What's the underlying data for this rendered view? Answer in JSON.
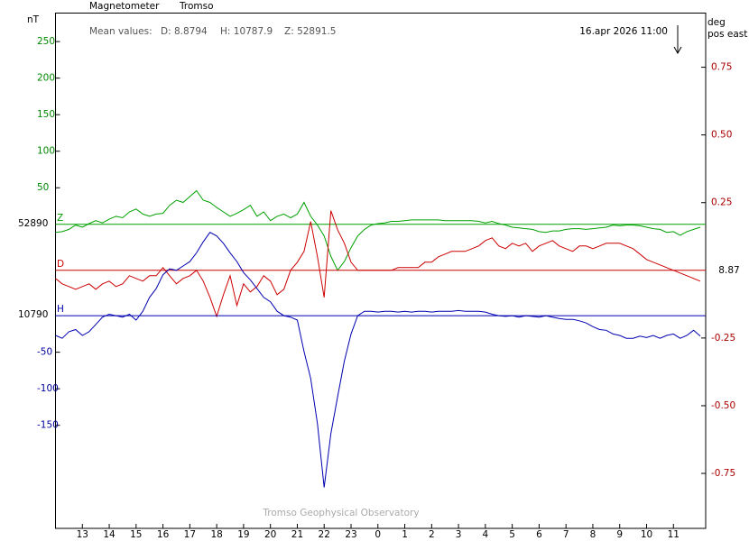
{
  "chart_data": {
    "type": "line",
    "title": "Magnetometer",
    "station": "Tromso",
    "mean_values": {
      "label": "Mean values:",
      "items": [
        "D: 8.8794",
        "H: 10787.9",
        "Z: 52891.5"
      ]
    },
    "timestamp": "16.apr 2026 11:00",
    "y_label": "nT",
    "y2_label": [
      "deg",
      "pos east"
    ],
    "footer": "Tromso Geophysical Observatory",
    "xlim": [
      12,
      36.2
    ],
    "xticks": [
      13,
      14,
      15,
      16,
      17,
      18,
      19,
      20,
      21,
      22,
      23,
      {
        "value": 24,
        "label": "0"
      },
      {
        "value": 25,
        "label": "1"
      },
      {
        "value": 26,
        "label": "2"
      },
      {
        "value": 27,
        "label": "3"
      },
      {
        "value": 28,
        "label": "4"
      },
      {
        "value": 29,
        "label": "5"
      },
      {
        "value": 30,
        "label": "6"
      },
      {
        "value": 31,
        "label": "7"
      },
      {
        "value": 32,
        "label": "8"
      },
      {
        "value": 33,
        "label": "9"
      },
      {
        "value": 34,
        "label": "10"
      },
      {
        "value": 35,
        "label": "11"
      }
    ],
    "x": [
      12,
      12.25,
      12.5,
      12.75,
      13,
      13.25,
      13.5,
      13.75,
      14,
      14.25,
      14.5,
      14.75,
      15,
      15.25,
      15.5,
      15.75,
      16,
      16.25,
      16.5,
      16.75,
      17,
      17.25,
      17.5,
      17.75,
      18,
      18.25,
      18.5,
      18.75,
      19,
      19.25,
      19.5,
      19.75,
      20,
      20.25,
      20.5,
      20.75,
      21,
      21.25,
      21.5,
      21.75,
      22,
      22.25,
      22.5,
      22.75,
      23,
      23.25,
      23.5,
      23.75,
      24,
      24.25,
      24.5,
      24.75,
      25,
      25.25,
      25.5,
      25.75,
      26,
      26.25,
      26.5,
      26.75,
      27,
      27.25,
      27.5,
      27.75,
      28,
      28.25,
      28.5,
      28.75,
      29,
      29.25,
      29.5,
      29.75,
      30,
      30.25,
      30.5,
      30.75,
      31,
      31.25,
      31.5,
      31.75,
      32,
      32.25,
      32.5,
      32.75,
      33,
      33.25,
      33.5,
      33.75,
      34,
      34.25,
      34.5,
      34.75,
      35,
      35.25,
      35.5,
      35.75,
      36
    ],
    "series": [
      {
        "name": "Z",
        "color": "#00a000",
        "tick_color": "#008800",
        "axis": "y",
        "baseline": 52890,
        "ylim": [
          -416,
          289
        ],
        "yticks": [
          50,
          100,
          150,
          200,
          250
        ],
        "values": [
          -11,
          -10,
          -7,
          -1,
          -4,
          1,
          5,
          2,
          7,
          11,
          9,
          17,
          21,
          14,
          11,
          14,
          15,
          26,
          33,
          30,
          38,
          46,
          33,
          30,
          23,
          17,
          11,
          15,
          20,
          26,
          11,
          17,
          5,
          11,
          14,
          9,
          14,
          30,
          11,
          -1,
          -16,
          -44,
          -63,
          -51,
          -32,
          -16,
          -7,
          -1,
          1,
          2,
          4,
          4,
          5,
          6,
          6,
          6,
          6,
          6,
          5,
          5,
          5,
          5,
          5,
          4,
          2,
          4,
          1,
          -1,
          -4,
          -5,
          -6,
          -7,
          -10,
          -11,
          -9,
          -9,
          -7,
          -6,
          -6,
          -7,
          -6,
          -5,
          -4,
          -1,
          -2,
          -1,
          -1,
          -2,
          -4,
          -6,
          -7,
          -11,
          -10,
          -15,
          -10,
          -7,
          -4
        ]
      },
      {
        "name": "D",
        "color": "#cc0000",
        "tick_color": "#aa0000",
        "axis": "y2",
        "baseline": 8.87,
        "ylim": [
          -0.953,
          0.95
        ],
        "yticks": [
          0.75,
          {
            "value": 0.5,
            "label": "0.50"
          },
          0.25,
          -0.25,
          {
            "value": -0.5,
            "label": "-0.50"
          },
          -0.75
        ],
        "values": [
          -0.03,
          -0.05,
          -0.06,
          -0.07,
          -0.06,
          -0.05,
          -0.07,
          -0.05,
          -0.04,
          -0.06,
          -0.05,
          -0.02,
          -0.03,
          -0.04,
          -0.02,
          -0.02,
          0.01,
          -0.02,
          -0.05,
          -0.03,
          -0.02,
          0,
          -0.04,
          -0.1,
          -0.17,
          -0.09,
          -0.02,
          -0.13,
          -0.05,
          -0.08,
          -0.06,
          -0.02,
          -0.04,
          -0.09,
          -0.07,
          0,
          0.03,
          0.07,
          0.18,
          0.05,
          -0.1,
          0.22,
          0.15,
          0.1,
          0.03,
          0,
          0,
          0,
          0,
          0,
          0,
          0.01,
          0.01,
          0.01,
          0.01,
          0.03,
          0.03,
          0.05,
          0.06,
          0.07,
          0.07,
          0.07,
          0.08,
          0.09,
          0.11,
          0.12,
          0.09,
          0.08,
          0.1,
          0.09,
          0.1,
          0.07,
          0.09,
          0.1,
          0.11,
          0.09,
          0.08,
          0.07,
          0.09,
          0.09,
          0.08,
          0.09,
          0.1,
          0.1,
          0.1,
          0.09,
          0.08,
          0.06,
          0.04,
          0.03,
          0.02,
          0.01,
          0,
          -0.01,
          -0.02,
          -0.03,
          -0.04
        ]
      },
      {
        "name": "H",
        "color": "#0000b0",
        "tick_color": "#0000a0",
        "axis": "y",
        "baseline": 10790,
        "ylim": [
          -291,
          414
        ],
        "yticks": [
          -50,
          -100,
          -150
        ],
        "values": [
          -27,
          -31,
          -22,
          -19,
          -27,
          -22,
          -12,
          -2,
          2,
          0,
          -2,
          2,
          -6,
          6,
          25,
          37,
          56,
          64,
          62,
          68,
          74,
          86,
          101,
          114,
          109,
          99,
          86,
          74,
          59,
          49,
          37,
          25,
          19,
          6,
          0,
          -2,
          -6,
          -49,
          -86,
          -148,
          -235,
          -161,
          -111,
          -62,
          -25,
          0,
          6,
          6,
          5,
          6,
          6,
          5,
          6,
          5,
          6,
          6,
          5,
          6,
          6,
          6,
          7,
          6,
          6,
          6,
          5,
          2,
          0,
          -1,
          0,
          -2,
          0,
          -1,
          -2,
          0,
          -2,
          -4,
          -5,
          -5,
          -7,
          -10,
          -15,
          -19,
          -20,
          -25,
          -27,
          -31,
          -31,
          -28,
          -30,
          -27,
          -31,
          -27,
          -25,
          -31,
          -27,
          -20,
          -28
        ]
      }
    ]
  }
}
